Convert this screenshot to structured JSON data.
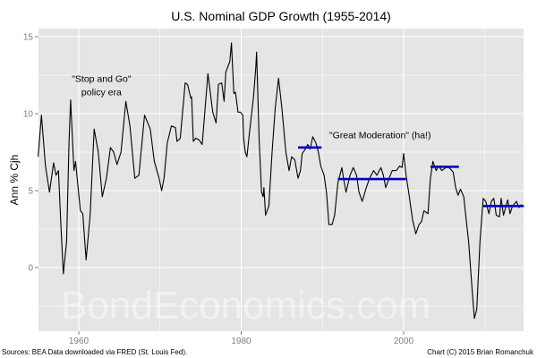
{
  "chart_data": {
    "type": "line",
    "title": "U.S. Nominal GDP Growth (1955-2014)",
    "xlabel": "",
    "ylabel": "Ann % Cjh",
    "xlim": [
      1955,
      2015
    ],
    "ylim": [
      -4,
      16
    ],
    "grid": true,
    "x_ticks": [
      1960,
      1980,
      2000
    ],
    "x_tick_labels": [
      "1960",
      "1980",
      "2000"
    ],
    "y_ticks": [
      0,
      5,
      10,
      15
    ],
    "y_tick_labels": [
      "0",
      "5",
      "10",
      "15"
    ],
    "series": [
      {
        "name": "Nominal GDP growth",
        "color": "#000000",
        "points": [
          [
            1955.0,
            7.2
          ],
          [
            1955.4,
            9.9
          ],
          [
            1955.9,
            6.6
          ],
          [
            1956.4,
            4.9
          ],
          [
            1956.9,
            6.8
          ],
          [
            1957.2,
            6.0
          ],
          [
            1957.5,
            6.3
          ],
          [
            1957.8,
            2.8
          ],
          [
            1958.1,
            -0.4
          ],
          [
            1958.5,
            1.7
          ],
          [
            1958.8,
            8.1
          ],
          [
            1959.0,
            10.9
          ],
          [
            1959.4,
            6.3
          ],
          [
            1959.6,
            6.9
          ],
          [
            1960.2,
            3.7
          ],
          [
            1960.5,
            3.5
          ],
          [
            1960.9,
            0.5
          ],
          [
            1961.4,
            3.4
          ],
          [
            1961.9,
            9.0
          ],
          [
            1962.4,
            7.5
          ],
          [
            1962.9,
            4.6
          ],
          [
            1963.4,
            5.8
          ],
          [
            1963.9,
            7.8
          ],
          [
            1964.3,
            7.5
          ],
          [
            1964.7,
            6.7
          ],
          [
            1965.2,
            7.5
          ],
          [
            1965.8,
            10.8
          ],
          [
            1966.3,
            9.2
          ],
          [
            1966.9,
            5.8
          ],
          [
            1967.4,
            6.0
          ],
          [
            1968.1,
            9.9
          ],
          [
            1968.8,
            9.0
          ],
          [
            1969.3,
            6.9
          ],
          [
            1969.9,
            5.8
          ],
          [
            1970.2,
            5.0
          ],
          [
            1970.5,
            5.8
          ],
          [
            1970.9,
            8.1
          ],
          [
            1971.4,
            9.2
          ],
          [
            1971.9,
            9.1
          ],
          [
            1972.1,
            8.2
          ],
          [
            1972.5,
            8.4
          ],
          [
            1973.1,
            12.0
          ],
          [
            1973.4,
            11.9
          ],
          [
            1973.8,
            11.0
          ],
          [
            1973.9,
            11.1
          ],
          [
            1974.1,
            8.2
          ],
          [
            1974.4,
            8.4
          ],
          [
            1974.8,
            8.3
          ],
          [
            1975.2,
            8.0
          ],
          [
            1975.5,
            10.0
          ],
          [
            1975.9,
            12.6
          ],
          [
            1976.5,
            10.1
          ],
          [
            1976.9,
            9.4
          ],
          [
            1977.2,
            11.9
          ],
          [
            1977.6,
            12.0
          ],
          [
            1977.9,
            10.8
          ],
          [
            1978.1,
            12.7
          ],
          [
            1978.6,
            13.4
          ],
          [
            1978.8,
            14.6
          ],
          [
            1979.1,
            11.3
          ],
          [
            1979.3,
            11.4
          ],
          [
            1979.6,
            10.1
          ],
          [
            1979.9,
            10.1
          ],
          [
            1980.2,
            9.9
          ],
          [
            1980.3,
            8.4
          ],
          [
            1980.5,
            7.5
          ],
          [
            1980.7,
            7.2
          ],
          [
            1981.0,
            8.7
          ],
          [
            1981.5,
            11.0
          ],
          [
            1981.8,
            13.0
          ],
          [
            1981.9,
            14.0
          ],
          [
            1982.2,
            8.4
          ],
          [
            1982.5,
            4.9
          ],
          [
            1982.7,
            4.6
          ],
          [
            1982.8,
            5.2
          ],
          [
            1983.0,
            3.4
          ],
          [
            1983.4,
            4.0
          ],
          [
            1983.8,
            7.5
          ],
          [
            1984.2,
            10.4
          ],
          [
            1984.6,
            12.3
          ],
          [
            1985.0,
            10.4
          ],
          [
            1985.5,
            7.5
          ],
          [
            1985.9,
            6.3
          ],
          [
            1986.2,
            7.2
          ],
          [
            1986.6,
            7.0
          ],
          [
            1987.0,
            5.8
          ],
          [
            1987.3,
            6.3
          ],
          [
            1987.5,
            7.4
          ],
          [
            1987.9,
            7.7
          ],
          [
            1988.2,
            8.0
          ],
          [
            1988.5,
            7.7
          ],
          [
            1988.8,
            8.5
          ],
          [
            1989.2,
            8.1
          ],
          [
            1989.5,
            7.5
          ],
          [
            1989.8,
            6.6
          ],
          [
            1990.2,
            6.0
          ],
          [
            1990.5,
            4.9
          ],
          [
            1990.8,
            2.8
          ],
          [
            1991.2,
            2.8
          ],
          [
            1991.5,
            3.4
          ],
          [
            1991.9,
            5.5
          ],
          [
            1992.4,
            6.5
          ],
          [
            1992.6,
            5.8
          ],
          [
            1992.9,
            4.9
          ],
          [
            1993.4,
            6.0
          ],
          [
            1993.8,
            6.5
          ],
          [
            1994.2,
            6.0
          ],
          [
            1994.5,
            4.9
          ],
          [
            1994.9,
            4.3
          ],
          [
            1995.4,
            5.2
          ],
          [
            1995.8,
            5.8
          ],
          [
            1996.3,
            6.3
          ],
          [
            1996.7,
            6.0
          ],
          [
            1997.2,
            6.5
          ],
          [
            1997.5,
            6.0
          ],
          [
            1997.8,
            5.2
          ],
          [
            1998.2,
            5.8
          ],
          [
            1998.6,
            6.3
          ],
          [
            1999.1,
            6.3
          ],
          [
            1999.5,
            6.6
          ],
          [
            1999.8,
            6.5
          ],
          [
            2000.0,
            7.4
          ],
          [
            2000.3,
            6.0
          ],
          [
            2000.7,
            4.6
          ],
          [
            2001.1,
            3.1
          ],
          [
            2001.5,
            2.2
          ],
          [
            2001.9,
            2.8
          ],
          [
            2002.2,
            3.0
          ],
          [
            2002.5,
            3.7
          ],
          [
            2003.0,
            3.5
          ],
          [
            2003.3,
            5.8
          ],
          [
            2003.6,
            6.9
          ],
          [
            2004.0,
            6.3
          ],
          [
            2004.3,
            6.6
          ],
          [
            2004.7,
            6.3
          ],
          [
            2005.2,
            6.5
          ],
          [
            2005.6,
            6.5
          ],
          [
            2006.1,
            6.2
          ],
          [
            2006.4,
            5.2
          ],
          [
            2006.7,
            4.7
          ],
          [
            2007.0,
            5.1
          ],
          [
            2007.4,
            4.6
          ],
          [
            2007.7,
            3.1
          ],
          [
            2008.0,
            1.7
          ],
          [
            2008.4,
            -1.2
          ],
          [
            2008.7,
            -3.3
          ],
          [
            2009.0,
            -2.7
          ],
          [
            2009.4,
            1.7
          ],
          [
            2009.8,
            4.5
          ],
          [
            2010.1,
            4.3
          ],
          [
            2010.5,
            3.5
          ],
          [
            2010.8,
            4.3
          ],
          [
            2011.1,
            4.5
          ],
          [
            2011.4,
            3.4
          ],
          [
            2011.8,
            3.3
          ],
          [
            2012.0,
            4.5
          ],
          [
            2012.3,
            3.4
          ],
          [
            2012.8,
            4.4
          ],
          [
            2013.1,
            3.5
          ],
          [
            2013.4,
            4.0
          ],
          [
            2013.9,
            4.3
          ],
          [
            2014.2,
            3.9
          ],
          [
            2014.5,
            4.1
          ]
        ]
      }
    ],
    "segments": [
      {
        "name": "average-1987-1990",
        "x0": 1987.0,
        "x1": 1989.9,
        "value": 7.8,
        "color": "#0000cc"
      },
      {
        "name": "average-1992-2000",
        "x0": 1991.9,
        "x1": 2000.3,
        "value": 5.75,
        "color": "#0000cc"
      },
      {
        "name": "average-2003-2006",
        "x0": 2003.3,
        "x1": 2006.8,
        "value": 6.55,
        "color": "#0000cc"
      },
      {
        "name": "average-2010-2014",
        "x0": 2009.8,
        "x1": 2014.8,
        "value": 4.0,
        "color": "#0000cc"
      }
    ],
    "annotations": [
      {
        "name": "stop-and-go-annotation",
        "lines": [
          "\"Stop and Go\"",
          "policy era"
        ],
        "x": 1962.8,
        "y": 12.05
      },
      {
        "name": "great-moderation-annotation",
        "lines": [
          "\"Great Moderation\" (ha!)"
        ],
        "x": 1997.1,
        "y": 8.4
      }
    ],
    "watermark": "BondEconomics.com",
    "source_note": "Sources: BEA  Data downloaded via FRED (St. Louis Fed).",
    "credit_note": "Chart (C) 2015 Brian Romanchuk",
    "panel_background": "#e5e5e5",
    "grid_color": "#ffffff"
  }
}
